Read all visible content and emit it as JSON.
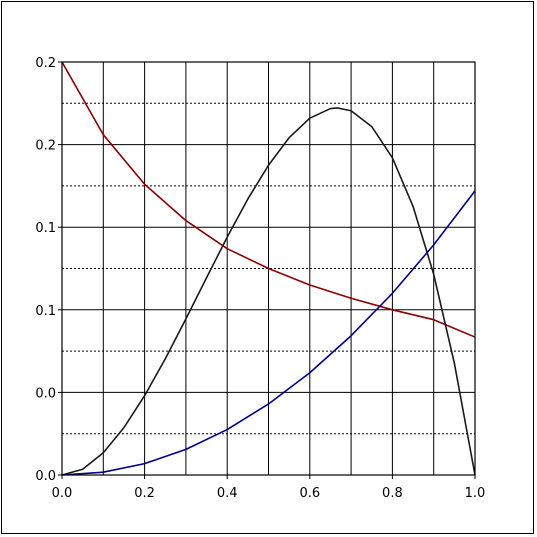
{
  "chart_data": {
    "type": "line",
    "title": "",
    "xlabel": "",
    "ylabel": "",
    "xlim": [
      0.0,
      1.0
    ],
    "ylim": [
      0.0,
      0.25
    ],
    "grid": true,
    "legend": "none",
    "x_ticks": [
      "0.0",
      "0.2",
      "0.4",
      "0.6",
      "0.8",
      "1.0"
    ],
    "x_tick_values": [
      0.0,
      0.2,
      0.4,
      0.6,
      0.8,
      1.0
    ],
    "y_ticks": [
      "0.0",
      "0.0",
      "0.1",
      "0.1",
      "0.2",
      "0.2"
    ],
    "y_tick_values": [
      0.0,
      0.05,
      0.1,
      0.15,
      0.2,
      0.25
    ],
    "series": [
      {
        "color": "#8b0000",
        "x": [
          0.0,
          0.1,
          0.2,
          0.3,
          0.4,
          0.5,
          0.6,
          0.7,
          0.8,
          0.9,
          1.0
        ],
        "y": [
          0.25,
          0.206,
          0.176,
          0.154,
          0.137,
          0.125,
          0.115,
          0.107,
          0.1,
          0.094,
          0.0835
        ]
      },
      {
        "color": "#1a1a1a",
        "x": [
          0.0,
          0.05,
          0.1,
          0.15,
          0.2,
          0.25,
          0.3,
          0.35,
          0.4,
          0.45,
          0.5,
          0.55,
          0.6,
          0.65,
          0.6667,
          0.7,
          0.75,
          0.8,
          0.85,
          0.9,
          0.95,
          1.0
        ],
        "y": [
          0.0,
          0.0035,
          0.0135,
          0.0287,
          0.048,
          0.0703,
          0.0945,
          0.1194,
          0.144,
          0.1671,
          0.1875,
          0.2042,
          0.216,
          0.2218,
          0.2222,
          0.2205,
          0.2109,
          0.192,
          0.1626,
          0.1215,
          0.0677,
          0.0
        ]
      },
      {
        "color": "#00008b",
        "x": [
          0.0,
          0.1,
          0.2,
          0.3,
          0.4,
          0.5,
          0.6,
          0.7,
          0.8,
          0.9,
          1.0
        ],
        "y": [
          0.0,
          0.0017,
          0.0069,
          0.0155,
          0.0275,
          0.043,
          0.0619,
          0.0843,
          0.11,
          0.1393,
          0.172
        ]
      }
    ]
  }
}
